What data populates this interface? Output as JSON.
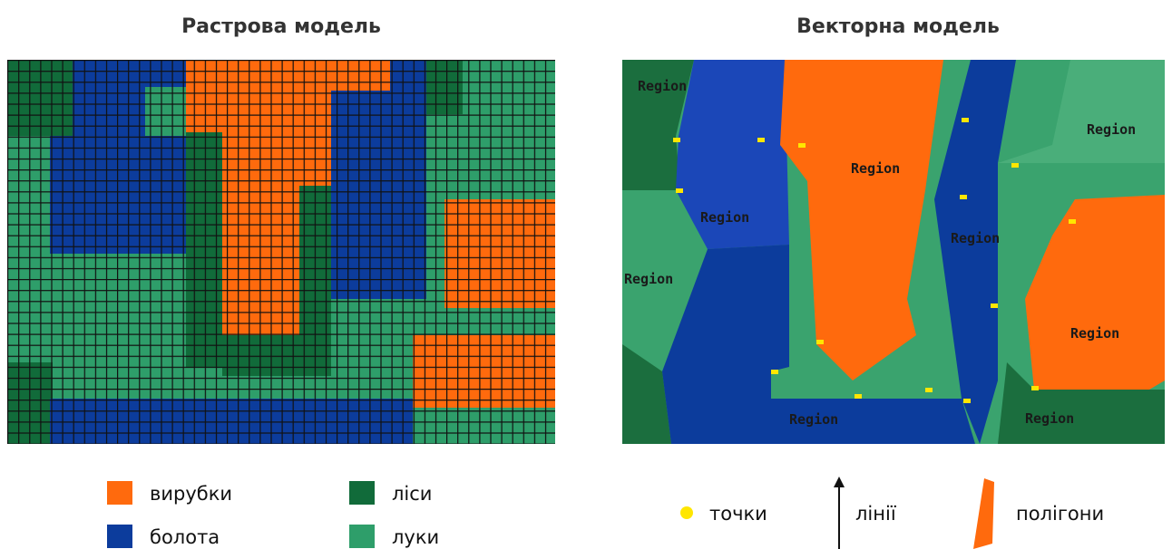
{
  "raster": {
    "title": "Растрова модель",
    "legend": [
      "вирубки",
      "болота",
      "ліси",
      "луки"
    ]
  },
  "vector": {
    "title": "Векторна модель",
    "regions": [
      "Region",
      "Region",
      "Region",
      "Region",
      "Region",
      "Region",
      "Region",
      "Region",
      "Region"
    ],
    "legend": [
      "точки",
      "лінії",
      "полігони"
    ]
  }
}
